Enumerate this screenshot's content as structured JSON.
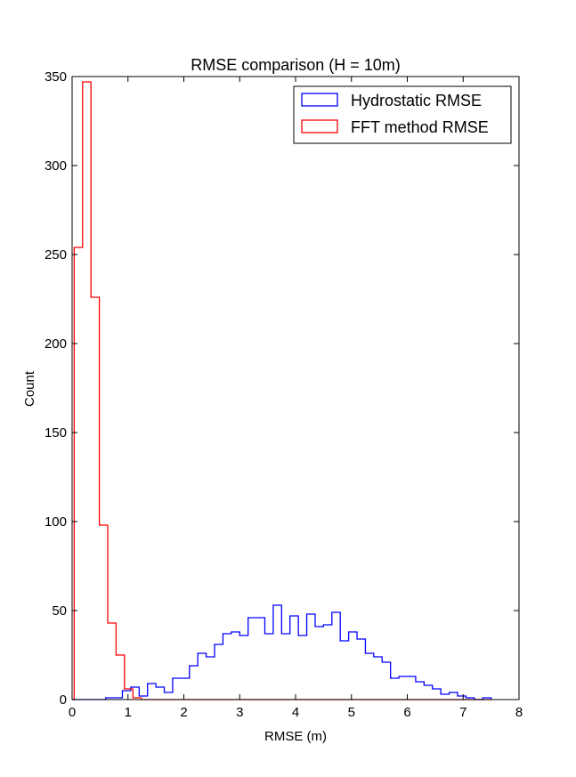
{
  "chart_data": {
    "type": "histogram-step",
    "title": "RMSE comparison (H = 10m)",
    "xlabel": "RMSE (m)",
    "ylabel": "Count",
    "xlim": [
      0,
      8
    ],
    "ylim": [
      0,
      350
    ],
    "xticks": [
      0,
      1,
      2,
      3,
      4,
      5,
      6,
      7,
      8
    ],
    "yticks": [
      0,
      50,
      100,
      150,
      200,
      250,
      300,
      350
    ],
    "grid": false,
    "legend_position": "top-right",
    "series": [
      {
        "name": "Hydrostatic RMSE",
        "color": "#0000ff",
        "bin_edges": [
          0.0,
          0.15,
          0.3,
          0.45,
          0.6,
          0.75,
          0.9,
          1.05,
          1.2,
          1.35,
          1.5,
          1.65,
          1.8,
          1.95,
          2.1,
          2.25,
          2.4,
          2.55,
          2.7,
          2.85,
          3.0,
          3.15,
          3.3,
          3.45,
          3.6,
          3.75,
          3.9,
          4.05,
          4.2,
          4.35,
          4.5,
          4.65,
          4.8,
          4.95,
          5.1,
          5.25,
          5.4,
          5.55,
          5.7,
          5.85,
          6.0,
          6.15,
          6.3,
          6.45,
          6.6,
          6.75,
          6.9,
          7.05,
          7.2,
          7.35,
          7.5
        ],
        "counts": [
          0,
          0,
          0,
          0,
          1,
          1,
          5,
          7,
          2,
          9,
          7,
          4,
          12,
          12,
          19,
          26,
          24,
          31,
          37,
          38,
          36,
          46,
          46,
          37,
          53,
          37,
          47,
          36,
          48,
          41,
          42,
          49,
          33,
          38,
          34,
          26,
          24,
          21,
          12,
          13,
          13,
          10,
          8,
          6,
          3,
          4,
          2,
          1,
          0,
          1
        ]
      },
      {
        "name": "FFT method RMSE",
        "color": "#ff0000",
        "bin_edges": [
          0.0,
          0.0375,
          0.1875,
          0.3375,
          0.4875,
          0.6375,
          0.7875,
          0.9375,
          1.0875,
          1.2375,
          1.3875,
          7.5
        ],
        "counts": [
          0,
          254,
          347,
          226,
          98,
          43,
          25,
          6,
          1,
          0,
          0
        ]
      }
    ]
  }
}
